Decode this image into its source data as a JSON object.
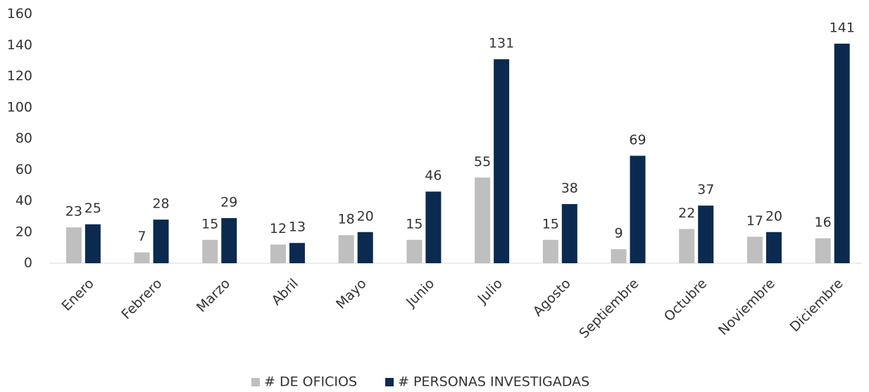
{
  "chart_data": {
    "type": "bar",
    "categories": [
      "Enero",
      "Febrero",
      "Marzo",
      "Abril",
      "Mayo",
      "Junio",
      "Julio",
      "Agosto",
      "Septiembre",
      "Octubre",
      "Noviembre",
      "Diciembre"
    ],
    "series": [
      {
        "name": "# DE OFICIOS",
        "color": "#bfbfbf",
        "values": [
          23,
          7,
          15,
          12,
          18,
          15,
          55,
          15,
          9,
          22,
          17,
          16
        ]
      },
      {
        "name": "# PERSONAS INVESTIGADAS",
        "color": "#0c2a50",
        "values": [
          25,
          28,
          29,
          13,
          20,
          46,
          131,
          38,
          69,
          37,
          20,
          141
        ]
      }
    ],
    "ylim": [
      0,
      160
    ],
    "yticks": [
      0,
      20,
      40,
      60,
      80,
      100,
      120,
      140,
      160
    ],
    "grid": false,
    "legend": "bottom"
  }
}
